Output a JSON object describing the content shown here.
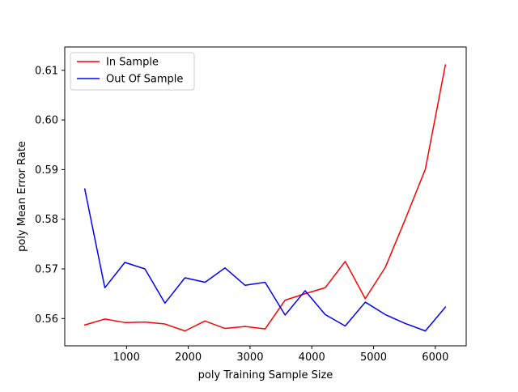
{
  "chart_data": {
    "type": "line",
    "title": "",
    "xlabel": "poly Training Sample Size",
    "ylabel": "poly Mean Error Rate",
    "xlim": [
      0,
      6500
    ],
    "ylim": [
      0.5545,
      0.6147
    ],
    "x_ticks": [
      1000,
      2000,
      3000,
      4000,
      5000,
      6000
    ],
    "y_ticks": [
      0.56,
      0.57,
      0.58,
      0.59,
      0.6,
      0.61
    ],
    "x_tick_labels": [
      "1000",
      "2000",
      "3000",
      "4000",
      "5000",
      "6000"
    ],
    "y_tick_labels": [
      "0.56",
      "0.57",
      "0.58",
      "0.59",
      "0.60",
      "0.61"
    ],
    "grid": false,
    "legend_position": "top-left",
    "x": [
      324,
      649,
      973,
      1298,
      1622,
      1946,
      2271,
      2595,
      2919,
      3244,
      3568,
      3892,
      4217,
      4541,
      4866,
      5190,
      5514,
      5839,
      6163
    ],
    "series": [
      {
        "name": "In Sample",
        "color": "#ff0000",
        "values": [
          0.5587,
          0.5599,
          0.5592,
          0.5593,
          0.5589,
          0.5575,
          0.5595,
          0.558,
          0.5584,
          0.5579,
          0.5637,
          0.565,
          0.5662,
          0.5715,
          0.564,
          0.5703,
          0.58,
          0.5901,
          0.6111
        ]
      },
      {
        "name": "Out Of Sample",
        "color": "#0000ff",
        "values": [
          0.5861,
          0.5662,
          0.5713,
          0.57,
          0.5631,
          0.5682,
          0.5673,
          0.5702,
          0.5667,
          0.5673,
          0.5607,
          0.5656,
          0.5608,
          0.5585,
          0.5633,
          0.5608,
          0.559,
          0.5575,
          0.5623
        ]
      }
    ]
  }
}
